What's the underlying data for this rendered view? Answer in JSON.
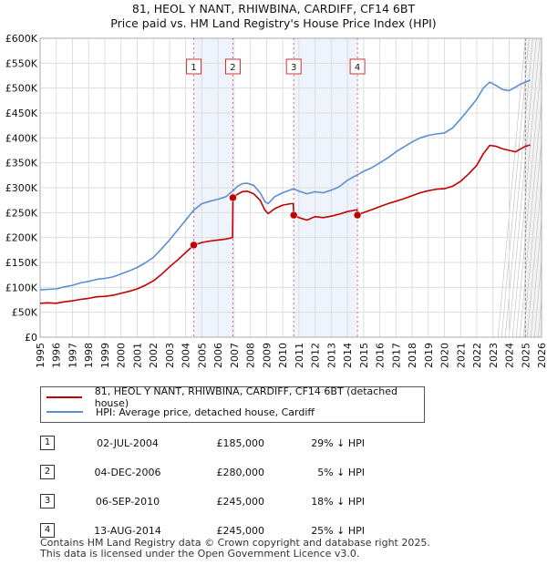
{
  "chart_data": {
    "type": "line",
    "title": "81, HEOL Y NANT, RHIWBINA, CARDIFF, CF14 6BT",
    "subtitle": "Price paid vs. HM Land Registry's House Price Index (HPI)",
    "xlim": [
      1995,
      2026
    ],
    "ylim": [
      0,
      600000
    ],
    "y_ticks": [
      0,
      50000,
      100000,
      150000,
      200000,
      250000,
      300000,
      350000,
      400000,
      450000,
      500000,
      550000,
      600000
    ],
    "y_tick_labels": [
      "£0",
      "£50K",
      "£100K",
      "£150K",
      "£200K",
      "£250K",
      "£300K",
      "£350K",
      "£400K",
      "£450K",
      "£500K",
      "£550K",
      "£600K"
    ],
    "x_ticks": [
      1995,
      1996,
      1997,
      1998,
      1999,
      2000,
      2001,
      2002,
      2003,
      2004,
      2005,
      2006,
      2007,
      2008,
      2009,
      2010,
      2011,
      2012,
      2013,
      2014,
      2015,
      2016,
      2017,
      2018,
      2019,
      2020,
      2021,
      2022,
      2023,
      2024,
      2025,
      2026
    ],
    "x_tick_labels": [
      "1995",
      "1996",
      "1997",
      "1998",
      "1999",
      "2000",
      "2001",
      "2002",
      "2003",
      "2004",
      "2005",
      "2006",
      "2007",
      "2008",
      "2009",
      "2010",
      "2011",
      "2012",
      "2013",
      "2014",
      "2015",
      "2016",
      "2017",
      "2018",
      "2019",
      "2020",
      "2021",
      "2022",
      "2023",
      "2024",
      "2025",
      "2026"
    ],
    "grid": true,
    "shaded_ranges": [
      [
        2004.5,
        2006.92
      ],
      [
        2010.68,
        2014.62
      ]
    ],
    "forecast_start": 2025.0,
    "series": [
      {
        "name": "81, HEOL Y NANT, RHIWBINA, CARDIFF, CF14 6BT (detached house)",
        "color": "#c00000",
        "points": [
          [
            1995.0,
            68000
          ],
          [
            1995.5,
            69000
          ],
          [
            1996.0,
            68000
          ],
          [
            1996.5,
            71000
          ],
          [
            1997.0,
            73000
          ],
          [
            1997.5,
            76000
          ],
          [
            1998.0,
            78000
          ],
          [
            1998.5,
            81000
          ],
          [
            1999.0,
            82000
          ],
          [
            1999.5,
            84000
          ],
          [
            2000.0,
            88000
          ],
          [
            2000.5,
            92000
          ],
          [
            2001.0,
            97000
          ],
          [
            2001.5,
            104000
          ],
          [
            2002.0,
            113000
          ],
          [
            2002.5,
            126000
          ],
          [
            2003.0,
            141000
          ],
          [
            2003.5,
            155000
          ],
          [
            2004.0,
            170000
          ],
          [
            2004.5,
            185000
          ],
          [
            2005.0,
            190000
          ],
          [
            2005.5,
            193000
          ],
          [
            2006.0,
            195000
          ],
          [
            2006.5,
            197000
          ],
          [
            2006.9,
            200000
          ],
          [
            2006.92,
            280000
          ],
          [
            2007.2,
            287000
          ],
          [
            2007.5,
            292000
          ],
          [
            2007.8,
            293000
          ],
          [
            2008.2,
            288000
          ],
          [
            2008.6,
            275000
          ],
          [
            2008.9,
            255000
          ],
          [
            2009.1,
            248000
          ],
          [
            2009.5,
            258000
          ],
          [
            2010.0,
            265000
          ],
          [
            2010.5,
            268000
          ],
          [
            2010.65,
            268000
          ],
          [
            2010.68,
            245000
          ],
          [
            2011.0,
            240000
          ],
          [
            2011.5,
            235000
          ],
          [
            2012.0,
            242000
          ],
          [
            2012.5,
            240000
          ],
          [
            2013.0,
            243000
          ],
          [
            2013.5,
            247000
          ],
          [
            2014.0,
            252000
          ],
          [
            2014.6,
            256000
          ],
          [
            2014.62,
            245000
          ],
          [
            2015.0,
            250000
          ],
          [
            2015.5,
            256000
          ],
          [
            2016.0,
            262000
          ],
          [
            2016.5,
            268000
          ],
          [
            2017.0,
            273000
          ],
          [
            2017.5,
            278000
          ],
          [
            2018.0,
            284000
          ],
          [
            2018.5,
            290000
          ],
          [
            2019.0,
            294000
          ],
          [
            2019.5,
            297000
          ],
          [
            2020.0,
            298000
          ],
          [
            2020.5,
            303000
          ],
          [
            2021.0,
            313000
          ],
          [
            2021.5,
            328000
          ],
          [
            2022.0,
            345000
          ],
          [
            2022.4,
            368000
          ],
          [
            2022.8,
            385000
          ],
          [
            2023.2,
            383000
          ],
          [
            2023.6,
            378000
          ],
          [
            2024.0,
            375000
          ],
          [
            2024.4,
            372000
          ],
          [
            2024.7,
            378000
          ],
          [
            2025.0,
            383000
          ],
          [
            2025.3,
            386000
          ]
        ]
      },
      {
        "name": "HPI: Average price, detached house, Cardiff",
        "color": "#5b8fd0",
        "points": [
          [
            1995.0,
            95000
          ],
          [
            1995.5,
            96000
          ],
          [
            1996.0,
            97000
          ],
          [
            1996.5,
            101000
          ],
          [
            1997.0,
            104000
          ],
          [
            1997.5,
            109000
          ],
          [
            1998.0,
            112000
          ],
          [
            1998.5,
            116000
          ],
          [
            1999.0,
            118000
          ],
          [
            1999.5,
            121000
          ],
          [
            2000.0,
            127000
          ],
          [
            2000.5,
            133000
          ],
          [
            2001.0,
            140000
          ],
          [
            2001.5,
            149000
          ],
          [
            2002.0,
            160000
          ],
          [
            2002.5,
            177000
          ],
          [
            2003.0,
            195000
          ],
          [
            2003.5,
            215000
          ],
          [
            2004.0,
            235000
          ],
          [
            2004.5,
            255000
          ],
          [
            2005.0,
            268000
          ],
          [
            2005.5,
            273000
          ],
          [
            2006.0,
            277000
          ],
          [
            2006.5,
            282000
          ],
          [
            2006.92,
            294000
          ],
          [
            2007.2,
            303000
          ],
          [
            2007.5,
            308000
          ],
          [
            2007.8,
            309000
          ],
          [
            2008.2,
            305000
          ],
          [
            2008.6,
            290000
          ],
          [
            2008.9,
            272000
          ],
          [
            2009.1,
            268000
          ],
          [
            2009.5,
            282000
          ],
          [
            2010.0,
            290000
          ],
          [
            2010.68,
            298000
          ],
          [
            2011.0,
            293000
          ],
          [
            2011.5,
            288000
          ],
          [
            2012.0,
            292000
          ],
          [
            2012.5,
            290000
          ],
          [
            2013.0,
            295000
          ],
          [
            2013.5,
            302000
          ],
          [
            2014.0,
            315000
          ],
          [
            2014.62,
            326000
          ],
          [
            2015.0,
            333000
          ],
          [
            2015.5,
            340000
          ],
          [
            2016.0,
            350000
          ],
          [
            2016.5,
            360000
          ],
          [
            2017.0,
            372000
          ],
          [
            2017.5,
            382000
          ],
          [
            2018.0,
            392000
          ],
          [
            2018.5,
            400000
          ],
          [
            2019.0,
            405000
          ],
          [
            2019.5,
            408000
          ],
          [
            2020.0,
            410000
          ],
          [
            2020.5,
            420000
          ],
          [
            2021.0,
            438000
          ],
          [
            2021.5,
            458000
          ],
          [
            2022.0,
            478000
          ],
          [
            2022.4,
            500000
          ],
          [
            2022.8,
            512000
          ],
          [
            2023.2,
            505000
          ],
          [
            2023.6,
            497000
          ],
          [
            2024.0,
            495000
          ],
          [
            2024.4,
            502000
          ],
          [
            2024.7,
            508000
          ],
          [
            2025.0,
            512000
          ],
          [
            2025.3,
            516000
          ]
        ]
      }
    ],
    "sale_markers": [
      {
        "label": "1",
        "x": 2004.5,
        "y": 185000
      },
      {
        "label": "2",
        "x": 2006.92,
        "y": 280000
      },
      {
        "label": "3",
        "x": 2010.68,
        "y": 245000
      },
      {
        "label": "4",
        "x": 2014.62,
        "y": 245000
      }
    ]
  },
  "legend": {
    "property_label": "81, HEOL Y NANT, RHIWBINA, CARDIFF, CF14 6BT (detached house)",
    "hpi_label": "HPI: Average price, detached house, Cardiff"
  },
  "sales": [
    {
      "num": "1",
      "date": "02-JUL-2004",
      "price": "£185,000",
      "hpi": "29% ↓ HPI"
    },
    {
      "num": "2",
      "date": "04-DEC-2006",
      "price": "£280,000",
      "hpi": "5% ↓ HPI"
    },
    {
      "num": "3",
      "date": "06-SEP-2010",
      "price": "£245,000",
      "hpi": "18% ↓ HPI"
    },
    {
      "num": "4",
      "date": "13-AUG-2014",
      "price": "£245,000",
      "hpi": "25% ↓ HPI"
    }
  ],
  "footer": {
    "line1": "Contains HM Land Registry data © Crown copyright and database right 2025.",
    "line2": "This data is licensed under the Open Government Licence v3.0."
  }
}
